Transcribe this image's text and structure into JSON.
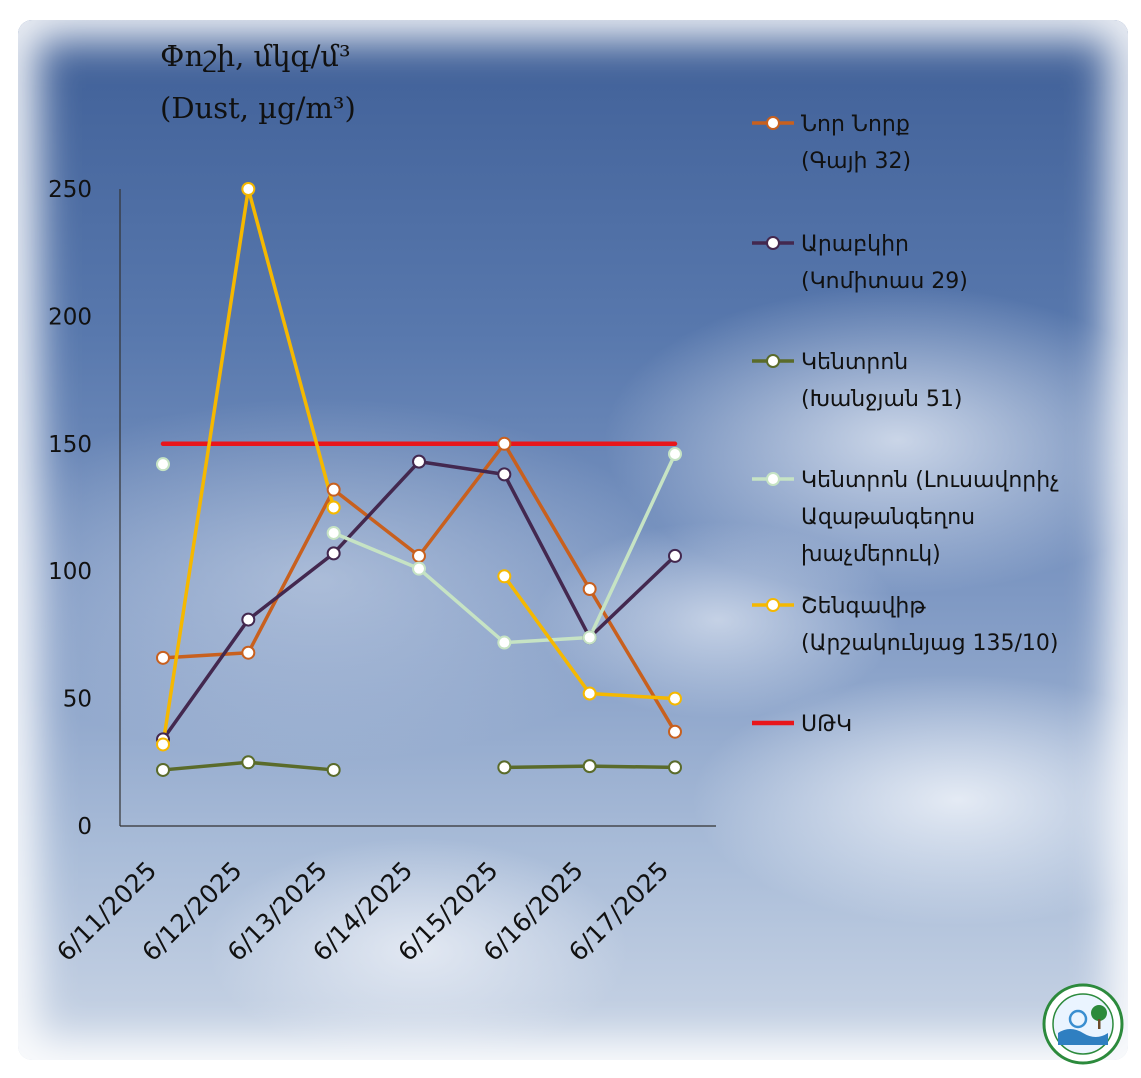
{
  "chart_data": {
    "type": "line",
    "title_lines": [
      "Փոշի, մկգ/մ³",
      "(Dust, µg/m³)"
    ],
    "x": [
      "6/11/2025",
      "6/12/2025",
      "6/13/2025",
      "6/14/2025",
      "6/15/2025",
      "6/16/2025",
      "6/17/2025"
    ],
    "ylim": [
      0,
      250
    ],
    "yticks": [
      0,
      50,
      100,
      150,
      200,
      250
    ],
    "grid": false,
    "legend_position": "right",
    "series": [
      {
        "name_lines": [
          "Նոր Նորք",
          "(Գայի 32)"
        ],
        "color": "#c8601e",
        "values": [
          66,
          68,
          132,
          106,
          150,
          93,
          37
        ]
      },
      {
        "name_lines": [
          "Արաբկիր",
          "(Կոմիտաս 29)"
        ],
        "color": "#43284f",
        "values": [
          34,
          81,
          107,
          143,
          138,
          74,
          106
        ]
      },
      {
        "name_lines": [
          "Կենտրոն",
          "(Խանջյան 51)"
        ],
        "color": "#5a6b2a",
        "values": [
          22,
          25,
          22,
          null,
          23,
          23.5,
          23
        ]
      },
      {
        "name_lines": [
          "Կենտրոն (Լուսավորիչ",
          "Ազաթանգեղոս",
          "խաչմերուկ)"
        ],
        "color": "#c6e3c4",
        "values": [
          142,
          null,
          115,
          101,
          72,
          74,
          146
        ]
      },
      {
        "name_lines": [
          "Շենգավիթ",
          "(Արշակունյաց 135/10)"
        ],
        "color": "#f5b800",
        "values": [
          32,
          250,
          125,
          null,
          98,
          52,
          50
        ]
      },
      {
        "name_lines": [
          "ՍԹԿ"
        ],
        "color": "#e8161b",
        "values": [
          150,
          150,
          150,
          150,
          150,
          150,
          150
        ],
        "marker": false
      }
    ]
  },
  "logo": {
    "label": "hydrometeorology and monitoring center seal"
  }
}
